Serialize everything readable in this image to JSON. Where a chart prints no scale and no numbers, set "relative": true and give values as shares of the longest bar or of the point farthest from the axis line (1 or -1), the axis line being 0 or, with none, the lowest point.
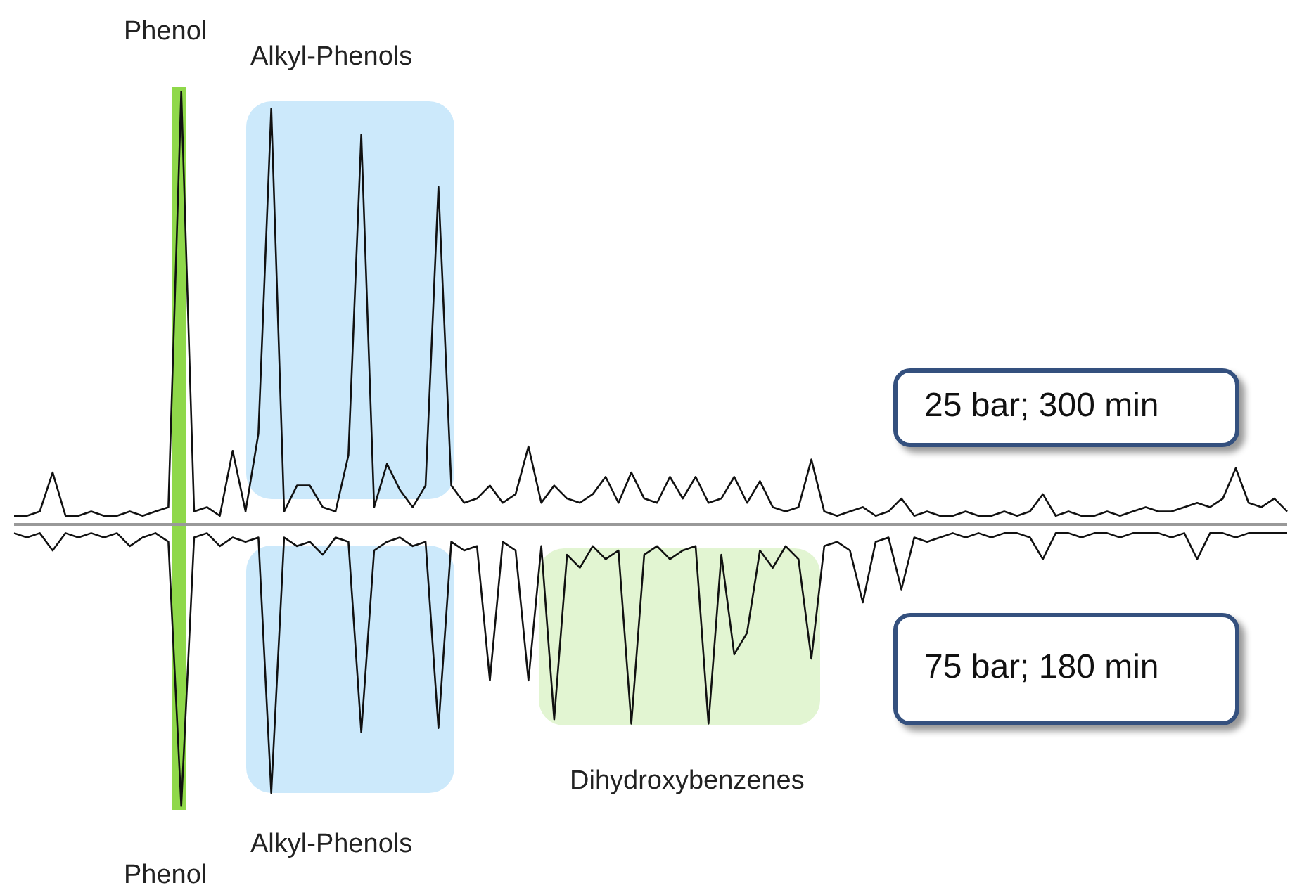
{
  "chart_data": {
    "type": "line",
    "relative": true,
    "categories": [
      null,
      null,
      null,
      null,
      null,
      null,
      null,
      null,
      null,
      null,
      null,
      null,
      null,
      null,
      null,
      null,
      null,
      null,
      null,
      null,
      null,
      null,
      null,
      null,
      null,
      null,
      null,
      null,
      null,
      null,
      null,
      null,
      null,
      null,
      null,
      null,
      null,
      null,
      null,
      null,
      null,
      null,
      null,
      null,
      null,
      null,
      null,
      null,
      null,
      null,
      null,
      null,
      null,
      null,
      null,
      null,
      null,
      null,
      null,
      null,
      null,
      null,
      null,
      null,
      null,
      null,
      null,
      null,
      null,
      null,
      null,
      null,
      null,
      null,
      null,
      null,
      null,
      null,
      null,
      null,
      null,
      null,
      null,
      null,
      null,
      null,
      null,
      null,
      null,
      null,
      null,
      null,
      null,
      null,
      null,
      null,
      null,
      null,
      null,
      null
    ],
    "series": [
      {
        "name": "25 bar; 300 min",
        "color": "#111111",
        "values": [
          0.02,
          0.02,
          0.03,
          0.12,
          0.02,
          0.02,
          0.03,
          0.02,
          0.02,
          0.03,
          0.02,
          0.03,
          0.04,
          1.0,
          0.03,
          0.04,
          0.02,
          0.17,
          0.03,
          0.21,
          0.96,
          0.03,
          0.09,
          0.09,
          0.04,
          0.03,
          0.16,
          0.9,
          0.04,
          0.14,
          0.08,
          0.04,
          0.09,
          0.78,
          0.09,
          0.05,
          0.06,
          0.09,
          0.05,
          0.07,
          0.18,
          0.05,
          0.09,
          0.06,
          0.05,
          0.07,
          0.11,
          0.05,
          0.12,
          0.06,
          0.05,
          0.11,
          0.06,
          0.11,
          0.05,
          0.06,
          0.11,
          0.05,
          0.1,
          0.04,
          0.03,
          0.04,
          0.15,
          0.03,
          0.02,
          0.03,
          0.04,
          0.02,
          0.03,
          0.06,
          0.02,
          0.03,
          0.02,
          0.02,
          0.03,
          0.02,
          0.02,
          0.03,
          0.02,
          0.03,
          0.07,
          0.02,
          0.03,
          0.02,
          0.02,
          0.03,
          0.02,
          0.03,
          0.04,
          0.03,
          0.03,
          0.04,
          0.05,
          0.04,
          0.06,
          0.13,
          0.05,
          0.04,
          0.06,
          0.03
        ]
      },
      {
        "name": "75 bar; 180 min",
        "color": "#111111",
        "values": [
          -0.02,
          -0.03,
          -0.02,
          -0.06,
          -0.02,
          -0.03,
          -0.02,
          -0.03,
          -0.02,
          -0.05,
          -0.03,
          -0.02,
          -0.04,
          -0.65,
          -0.03,
          -0.02,
          -0.05,
          -0.03,
          -0.04,
          -0.03,
          -0.62,
          -0.03,
          -0.05,
          -0.04,
          -0.07,
          -0.03,
          -0.04,
          -0.48,
          -0.06,
          -0.04,
          -0.03,
          -0.05,
          -0.04,
          -0.47,
          -0.04,
          -0.06,
          -0.05,
          -0.36,
          -0.04,
          -0.06,
          -0.36,
          -0.05,
          -0.45,
          -0.07,
          -0.1,
          -0.05,
          -0.08,
          -0.06,
          -0.46,
          -0.07,
          -0.05,
          -0.08,
          -0.06,
          -0.05,
          -0.46,
          -0.07,
          -0.3,
          -0.25,
          -0.06,
          -0.1,
          -0.05,
          -0.08,
          -0.31,
          -0.05,
          -0.04,
          -0.06,
          -0.18,
          -0.04,
          -0.03,
          -0.15,
          -0.03,
          -0.04,
          -0.03,
          -0.02,
          -0.03,
          -0.02,
          -0.03,
          -0.02,
          -0.02,
          -0.03,
          -0.08,
          -0.02,
          -0.02,
          -0.03,
          -0.02,
          -0.02,
          -0.03,
          -0.02,
          -0.02,
          -0.02,
          -0.03,
          -0.02,
          -0.08,
          -0.02,
          -0.02,
          -0.03,
          -0.02,
          -0.02,
          -0.02,
          -0.02
        ]
      }
    ],
    "annotations": [
      "Phenol",
      "Alkyl-Phenols",
      "Phenol",
      "Alkyl-Phenols",
      "Dihydroxybenzenes"
    ]
  }
}
